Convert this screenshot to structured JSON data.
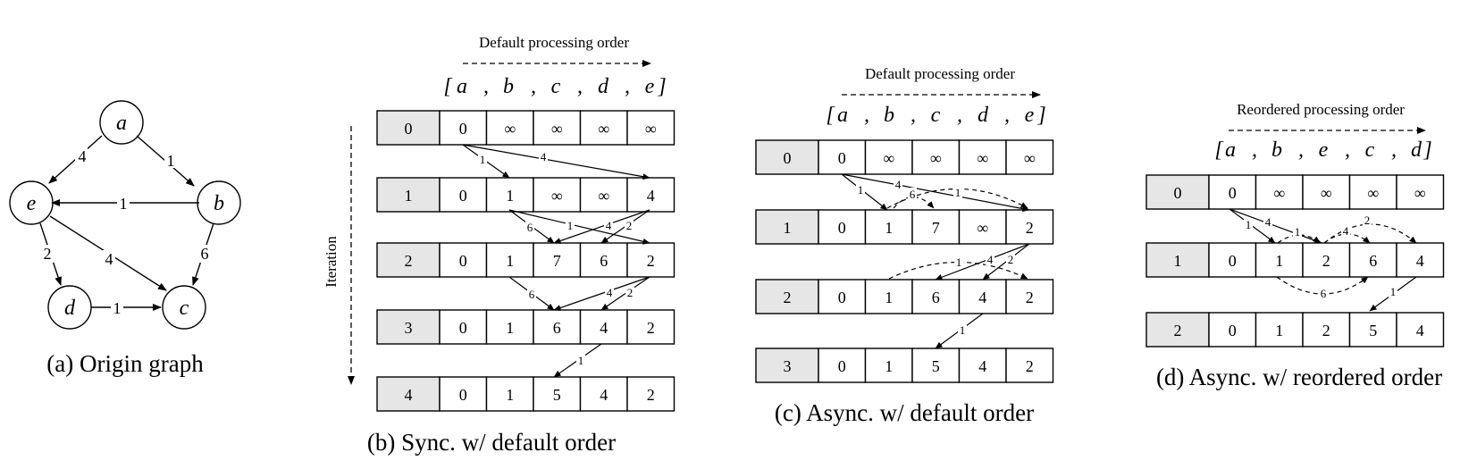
{
  "graph": {
    "nodes": [
      "a",
      "b",
      "c",
      "d",
      "e"
    ],
    "edges": [
      {
        "from": "a",
        "to": "e",
        "weight": "4"
      },
      {
        "from": "a",
        "to": "b",
        "weight": "1"
      },
      {
        "from": "b",
        "to": "e",
        "weight": "1"
      },
      {
        "from": "b",
        "to": "c",
        "weight": "6"
      },
      {
        "from": "e",
        "to": "d",
        "weight": "2"
      },
      {
        "from": "e",
        "to": "c",
        "weight": "4"
      },
      {
        "from": "d",
        "to": "c",
        "weight": "1"
      }
    ],
    "caption": "(a) Origin graph"
  },
  "panel_b": {
    "title": "Default processing order",
    "order": [
      "a",
      "b",
      "c",
      "d",
      "e"
    ],
    "iteration_label": "Iteration",
    "rows": [
      {
        "iter": "0",
        "values": [
          "0",
          "∞",
          "∞",
          "∞",
          "∞"
        ]
      },
      {
        "iter": "1",
        "values": [
          "0",
          "1",
          "∞",
          "∞",
          "4"
        ]
      },
      {
        "iter": "2",
        "values": [
          "0",
          "1",
          "7",
          "6",
          "2"
        ]
      },
      {
        "iter": "3",
        "values": [
          "0",
          "1",
          "6",
          "4",
          "2"
        ]
      },
      {
        "iter": "4",
        "values": [
          "0",
          "1",
          "5",
          "4",
          "2"
        ]
      }
    ],
    "arrow_labels": [
      "1",
      "4",
      "6",
      "1",
      "4",
      "2",
      "6",
      "4",
      "2",
      "1"
    ],
    "caption": "(b) Sync. w/ default order"
  },
  "panel_c": {
    "title": "Default processing order",
    "order": [
      "a",
      "b",
      "c",
      "d",
      "e"
    ],
    "rows": [
      {
        "iter": "0",
        "values": [
          "0",
          "∞",
          "∞",
          "∞",
          "∞"
        ]
      },
      {
        "iter": "1",
        "values": [
          "0",
          "1",
          "7",
          "∞",
          "2"
        ]
      },
      {
        "iter": "2",
        "values": [
          "0",
          "1",
          "6",
          "4",
          "2"
        ]
      },
      {
        "iter": "3",
        "values": [
          "0",
          "1",
          "5",
          "4",
          "2"
        ]
      }
    ],
    "arrow_labels": [
      "1",
      "4",
      "6",
      "1",
      "1",
      "4",
      "2",
      "1"
    ],
    "caption": "(c) Async. w/ default order"
  },
  "panel_d": {
    "title": "Reordered processing order",
    "order": [
      "a",
      "b",
      "e",
      "c",
      "d"
    ],
    "rows": [
      {
        "iter": "0",
        "values": [
          "0",
          "∞",
          "∞",
          "∞",
          "∞"
        ]
      },
      {
        "iter": "1",
        "values": [
          "0",
          "1",
          "2",
          "6",
          "4"
        ]
      },
      {
        "iter": "2",
        "values": [
          "0",
          "1",
          "2",
          "5",
          "4"
        ]
      }
    ],
    "arrow_labels": [
      "1",
      "4",
      "1",
      "4",
      "2",
      "6",
      "1"
    ],
    "caption": "(d) Async. w/ reordered order"
  }
}
